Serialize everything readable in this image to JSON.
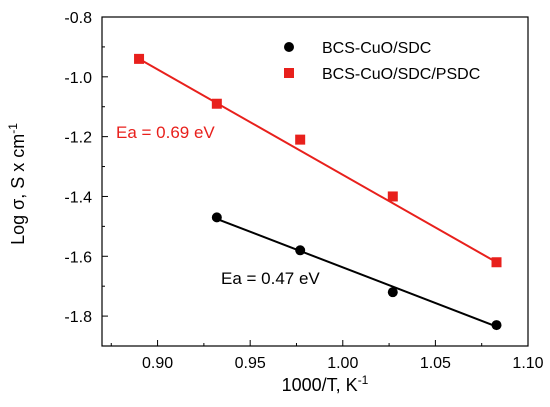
{
  "chart_data": {
    "type": "scatter",
    "xlabel": "1000/T, K",
    "xlabel_sup": "-1",
    "ylabel": "Log σ, S x cm",
    "ylabel_sup": "-1",
    "xlim": [
      0.87,
      1.1
    ],
    "ylim": [
      -1.9,
      -0.8
    ],
    "x_ticks": [
      0.9,
      0.95,
      1.0,
      1.05,
      1.1
    ],
    "x_tick_labels": [
      "0.90",
      "0.95",
      "1.00",
      "1.05",
      "1.10"
    ],
    "y_ticks": [
      -0.8,
      -1.0,
      -1.2,
      -1.4,
      -1.6,
      -1.8
    ],
    "y_tick_labels": [
      "-0.8",
      "-1.0",
      "-1.2",
      "-1.4",
      "-1.6",
      "-1.8"
    ],
    "grid": false,
    "legend_position": "top-right",
    "series": [
      {
        "name": "BCS-CuO/SDC",
        "marker": "circle",
        "color": "#000000",
        "x": [
          0.932,
          0.977,
          1.027,
          1.083
        ],
        "y": [
          -1.47,
          -1.58,
          -1.72,
          -1.83
        ],
        "fit": {
          "x": [
            0.932,
            1.083
          ],
          "y": [
            -1.475,
            -1.835
          ]
        },
        "annotation": "Ea = 0.47 eV"
      },
      {
        "name": "BCS-CuO/SDC/PSDC",
        "marker": "square",
        "color": "#e8201c",
        "x": [
          0.89,
          0.932,
          0.977,
          1.027,
          1.083
        ],
        "y": [
          -0.94,
          -1.09,
          -1.21,
          -1.4,
          -1.62
        ],
        "fit": {
          "x": [
            0.89,
            1.083
          ],
          "y": [
            -0.94,
            -1.62
          ]
        },
        "annotation": "Ea = 0.69 eV"
      }
    ]
  }
}
